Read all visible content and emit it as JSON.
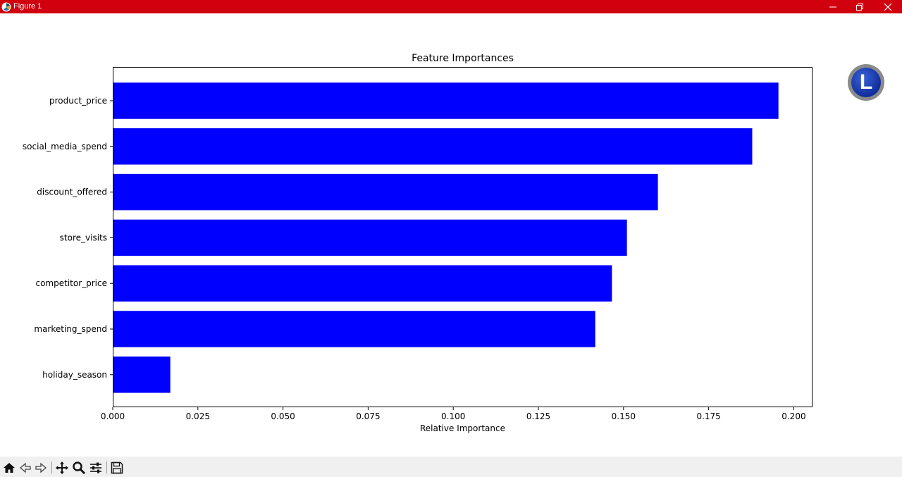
{
  "window": {
    "title": "Figure 1",
    "titlebar_color": "#d0000f"
  },
  "toolbar": {
    "buttons": [
      {
        "name": "home-icon"
      },
      {
        "name": "back-arrow-icon"
      },
      {
        "name": "forward-arrow-icon"
      },
      {
        "name": "pan-icon"
      },
      {
        "name": "zoom-icon"
      },
      {
        "name": "configure-subplots-icon"
      },
      {
        "name": "save-icon"
      }
    ]
  },
  "avatar": {
    "letter": "L"
  },
  "chart_data": {
    "type": "bar",
    "orientation": "horizontal",
    "title": "Feature Importances",
    "xlabel": "Relative Importance",
    "ylabel": "",
    "categories": [
      "product_price",
      "social_media_spend",
      "discount_offered",
      "store_visits",
      "competitor_price",
      "marketing_spend",
      "holiday_season"
    ],
    "values": [
      0.1955,
      0.1878,
      0.1601,
      0.151,
      0.1466,
      0.1417,
      0.0169
    ],
    "xlim": [
      0.0,
      0.2055
    ],
    "xticks": [
      "0.000",
      "0.025",
      "0.050",
      "0.075",
      "0.100",
      "0.125",
      "0.150",
      "0.175",
      "0.200"
    ],
    "bar_color": "#0000ff",
    "grid": false
  }
}
